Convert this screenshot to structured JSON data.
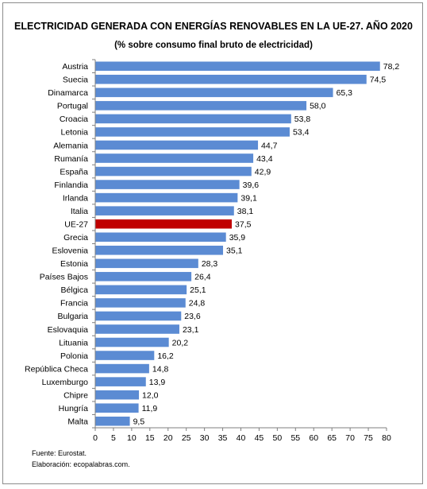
{
  "chart_data": {
    "type": "bar",
    "orientation": "horizontal",
    "title": "ELECTRICIDAD GENERADA CON ENERGÍAS RENOVABLES EN LA UE-27. AÑO 2020",
    "subtitle": "(% sobre consumo final bruto de electricidad)",
    "categories": [
      "Austria",
      "Suecia",
      "Dinamarca",
      "Portugal",
      "Croacia",
      "Letonia",
      "Alemania",
      "Rumanía",
      "España",
      "Finlandia",
      "Irlanda",
      "Italia",
      "UE-27",
      "Grecia",
      "Eslovenia",
      "Estonia",
      "Países Bajos",
      "Bélgica",
      "Francia",
      "Bulgaria",
      "Eslovaquia",
      "Lituania",
      "Polonia",
      "República Checa",
      "Luxemburgo",
      "Chipre",
      "Hungría",
      "Malta"
    ],
    "values": [
      78.2,
      74.5,
      65.3,
      58.0,
      53.8,
      53.4,
      44.7,
      43.4,
      42.9,
      39.6,
      39.1,
      38.1,
      37.5,
      35.9,
      35.1,
      28.3,
      26.4,
      25.1,
      24.8,
      23.6,
      23.1,
      20.2,
      16.2,
      14.8,
      13.9,
      12.0,
      11.9,
      9.5
    ],
    "value_labels": [
      "78,2",
      "74,5",
      "65,3",
      "58,0",
      "53,8",
      "53,4",
      "44,7",
      "43,4",
      "42,9",
      "39,6",
      "39,1",
      "38,1",
      "37,5",
      "35,9",
      "35,1",
      "28,3",
      "26,4",
      "25,1",
      "24,8",
      "23,6",
      "23,1",
      "20,2",
      "16,2",
      "14,8",
      "13,9",
      "12,0",
      "11,9",
      "9,5"
    ],
    "highlight_category": "UE-27",
    "xlim": [
      0,
      80
    ],
    "xticks": [
      0,
      5,
      10,
      15,
      20,
      25,
      30,
      35,
      40,
      45,
      50,
      55,
      60,
      65,
      70,
      75,
      80
    ],
    "grid": false,
    "colors": {
      "bar": "#5b8bd3",
      "highlight": "#c00000",
      "axis": "#7f7f7f"
    }
  },
  "footer": {
    "source": "Fuente: Eurostat.",
    "credit": "Elaboración: ecopalabras.com."
  }
}
